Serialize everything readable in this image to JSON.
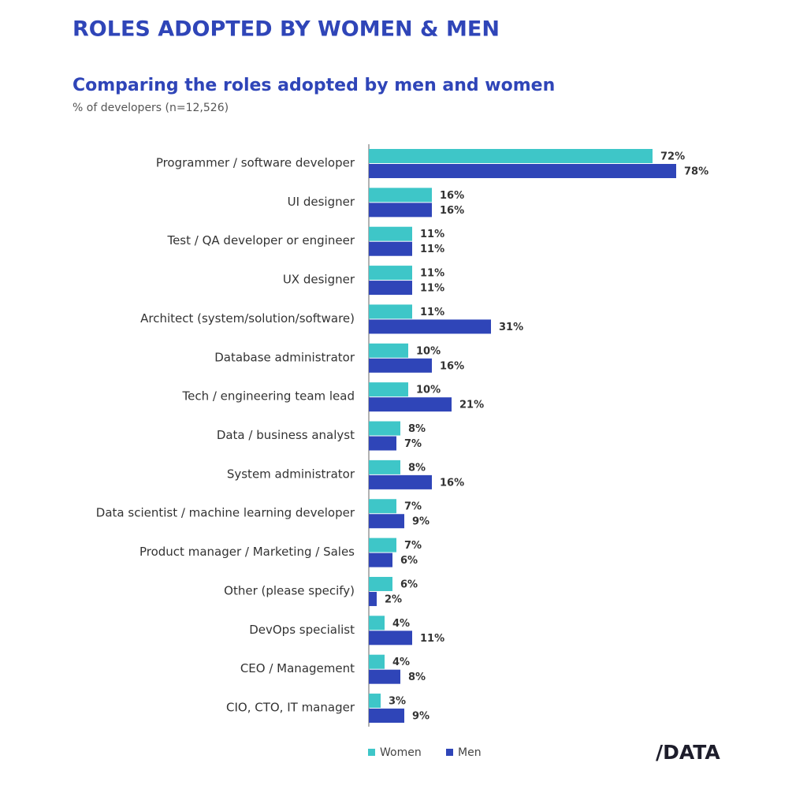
{
  "chart_data": {
    "type": "bar",
    "orientation": "horizontal",
    "title": "ROLES ADOPTED BY WOMEN & MEN",
    "subtitle": "Comparing the roles adopted by men and women",
    "note": "% of developers (n=12,526)",
    "logo": "/DATA",
    "categories": [
      "Programmer / software developer",
      "UI designer",
      "Test / QA developer or engineer",
      "UX designer",
      "Architect (system/solution/software)",
      "Database administrator",
      "Tech / engineering team lead",
      "Data / business analyst",
      "System administrator",
      "Data scientist / machine learning developer",
      "Product manager / Marketing / Sales",
      "Other (please specify)",
      "DevOps specialist",
      "CEO / Management",
      "CIO, CTO, IT manager"
    ],
    "series": [
      {
        "name": "Women",
        "color": "#3ec6c8",
        "values": [
          72,
          16,
          11,
          11,
          11,
          10,
          10,
          8,
          8,
          7,
          7,
          6,
          4,
          4,
          3
        ],
        "value_labels": [
          "72%",
          "16%",
          "11%",
          "11%",
          "11%",
          "10%",
          "10%",
          "8%",
          "8%",
          "7%",
          "7%",
          "6%",
          "4%",
          "4%",
          "3%"
        ]
      },
      {
        "name": "Men",
        "color": "#2f45b8",
        "values": [
          78,
          16,
          11,
          11,
          31,
          16,
          21,
          7,
          16,
          9,
          6,
          2,
          11,
          8,
          9
        ],
        "value_labels": [
          "78%",
          "16%",
          "11%",
          "11%",
          "31%",
          "16%",
          "21%",
          "7%",
          "16%",
          "9%",
          "6%",
          "2%",
          "11%",
          "8%",
          "9%"
        ]
      }
    ]
  }
}
